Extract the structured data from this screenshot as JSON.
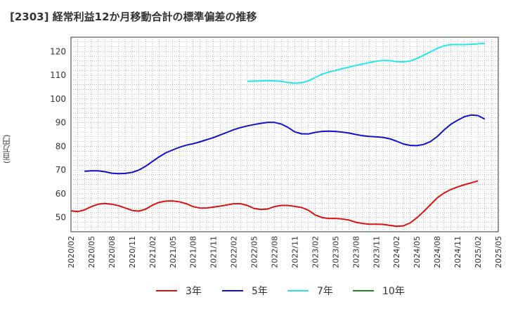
{
  "title": "[2303]  経常利益12か月移動合計の標準偏差の推移",
  "ylabel": "(百万円)",
  "chart_data": {
    "type": "line",
    "ylim": [
      44,
      126
    ],
    "yticks": [
      50,
      60,
      70,
      80,
      90,
      100,
      110,
      120
    ],
    "x_range": [
      "2020-02",
      "2025-05"
    ],
    "xticks": [
      "2020/02",
      "2020/05",
      "2020/08",
      "2020/11",
      "2021/02",
      "2021/05",
      "2021/08",
      "2021/11",
      "2022/02",
      "2022/05",
      "2022/08",
      "2022/11",
      "2023/02",
      "2023/05",
      "2023/08",
      "2023/11",
      "2024/02",
      "2024/05",
      "2024/08",
      "2024/11",
      "2025/02",
      "2025/05"
    ],
    "grid": true,
    "legend_position": "bottom",
    "series": [
      {
        "name": "3年",
        "color": "#dd1111",
        "points": [
          [
            "2020-02",
            52.8
          ],
          [
            "2020-03",
            52.5
          ],
          [
            "2020-04",
            53.2
          ],
          [
            "2020-05",
            54.6
          ],
          [
            "2020-06",
            55.6
          ],
          [
            "2020-07",
            55.9
          ],
          [
            "2020-08",
            55.6
          ],
          [
            "2020-09",
            55.0
          ],
          [
            "2020-10",
            54.0
          ],
          [
            "2020-11",
            53.0
          ],
          [
            "2020-12",
            52.7
          ],
          [
            "2021-01",
            53.5
          ],
          [
            "2021-02",
            55.2
          ],
          [
            "2021-03",
            56.4
          ],
          [
            "2021-04",
            56.9
          ],
          [
            "2021-05",
            57.0
          ],
          [
            "2021-06",
            56.6
          ],
          [
            "2021-07",
            55.8
          ],
          [
            "2021-08",
            54.6
          ],
          [
            "2021-09",
            54.0
          ],
          [
            "2021-10",
            54.0
          ],
          [
            "2021-11",
            54.4
          ],
          [
            "2021-12",
            54.8
          ],
          [
            "2022-01",
            55.3
          ],
          [
            "2022-02",
            55.8
          ],
          [
            "2022-03",
            55.8
          ],
          [
            "2022-04",
            55.1
          ],
          [
            "2022-05",
            53.8
          ],
          [
            "2022-06",
            53.4
          ],
          [
            "2022-07",
            53.6
          ],
          [
            "2022-08",
            54.6
          ],
          [
            "2022-09",
            55.1
          ],
          [
            "2022-10",
            55.1
          ],
          [
            "2022-11",
            54.7
          ],
          [
            "2022-12",
            54.2
          ],
          [
            "2023-01",
            53.1
          ],
          [
            "2023-02",
            51.1
          ],
          [
            "2023-03",
            50.0
          ],
          [
            "2023-04",
            49.6
          ],
          [
            "2023-05",
            49.6
          ],
          [
            "2023-06",
            49.4
          ],
          [
            "2023-07",
            48.9
          ],
          [
            "2023-08",
            48.0
          ],
          [
            "2023-09",
            47.5
          ],
          [
            "2023-10",
            47.2
          ],
          [
            "2023-11",
            47.2
          ],
          [
            "2023-12",
            47.1
          ],
          [
            "2024-01",
            46.7
          ],
          [
            "2024-02",
            46.3
          ],
          [
            "2024-03",
            46.5
          ],
          [
            "2024-04",
            47.7
          ],
          [
            "2024-05",
            49.9
          ],
          [
            "2024-06",
            52.5
          ],
          [
            "2024-07",
            55.4
          ],
          [
            "2024-08",
            58.3
          ],
          [
            "2024-09",
            60.3
          ],
          [
            "2024-10",
            61.8
          ],
          [
            "2024-11",
            62.9
          ],
          [
            "2024-12",
            63.8
          ],
          [
            "2025-01",
            64.6
          ],
          [
            "2025-02",
            65.5
          ]
        ]
      },
      {
        "name": "5年",
        "color": "#1111cc",
        "points": [
          [
            "2020-04",
            69.5
          ],
          [
            "2020-05",
            69.7
          ],
          [
            "2020-06",
            69.7
          ],
          [
            "2020-07",
            69.3
          ],
          [
            "2020-08",
            68.7
          ],
          [
            "2020-09",
            68.5
          ],
          [
            "2020-10",
            68.6
          ],
          [
            "2020-11",
            69.0
          ],
          [
            "2020-12",
            70.0
          ],
          [
            "2021-01",
            71.6
          ],
          [
            "2021-02",
            73.6
          ],
          [
            "2021-03",
            75.6
          ],
          [
            "2021-04",
            77.3
          ],
          [
            "2021-05",
            78.5
          ],
          [
            "2021-06",
            79.6
          ],
          [
            "2021-07",
            80.5
          ],
          [
            "2021-08",
            81.1
          ],
          [
            "2021-09",
            81.9
          ],
          [
            "2021-10",
            82.8
          ],
          [
            "2021-11",
            83.7
          ],
          [
            "2021-12",
            84.8
          ],
          [
            "2022-01",
            85.9
          ],
          [
            "2022-02",
            87.0
          ],
          [
            "2022-03",
            87.9
          ],
          [
            "2022-04",
            88.6
          ],
          [
            "2022-05",
            89.2
          ],
          [
            "2022-06",
            89.7
          ],
          [
            "2022-07",
            90.1
          ],
          [
            "2022-08",
            90.1
          ],
          [
            "2022-09",
            89.4
          ],
          [
            "2022-10",
            88.0
          ],
          [
            "2022-11",
            86.1
          ],
          [
            "2022-12",
            85.3
          ],
          [
            "2023-01",
            85.2
          ],
          [
            "2023-02",
            85.9
          ],
          [
            "2023-03",
            86.3
          ],
          [
            "2023-04",
            86.4
          ],
          [
            "2023-05",
            86.3
          ],
          [
            "2023-06",
            86.0
          ],
          [
            "2023-07",
            85.6
          ],
          [
            "2023-08",
            85.0
          ],
          [
            "2023-09",
            84.5
          ],
          [
            "2023-10",
            84.2
          ],
          [
            "2023-11",
            84.0
          ],
          [
            "2023-12",
            83.8
          ],
          [
            "2024-01",
            83.2
          ],
          [
            "2024-02",
            82.2
          ],
          [
            "2024-03",
            81.0
          ],
          [
            "2024-04",
            80.4
          ],
          [
            "2024-05",
            80.3
          ],
          [
            "2024-06",
            80.8
          ],
          [
            "2024-07",
            82.0
          ],
          [
            "2024-08",
            84.1
          ],
          [
            "2024-09",
            86.9
          ],
          [
            "2024-10",
            89.3
          ],
          [
            "2024-11",
            91.0
          ],
          [
            "2024-12",
            92.5
          ],
          [
            "2025-01",
            93.2
          ],
          [
            "2025-02",
            93.0
          ],
          [
            "2025-03",
            91.5
          ]
        ]
      },
      {
        "name": "7年",
        "color": "#22e8e8",
        "points": [
          [
            "2022-04",
            107.4
          ],
          [
            "2022-05",
            107.5
          ],
          [
            "2022-06",
            107.6
          ],
          [
            "2022-07",
            107.7
          ],
          [
            "2022-08",
            107.6
          ],
          [
            "2022-09",
            107.4
          ],
          [
            "2022-10",
            106.9
          ],
          [
            "2022-11",
            106.6
          ],
          [
            "2022-12",
            106.8
          ],
          [
            "2023-01",
            107.6
          ],
          [
            "2023-02",
            109.0
          ],
          [
            "2023-03",
            110.4
          ],
          [
            "2023-04",
            111.3
          ],
          [
            "2023-05",
            112.0
          ],
          [
            "2023-06",
            112.7
          ],
          [
            "2023-07",
            113.4
          ],
          [
            "2023-08",
            114.1
          ],
          [
            "2023-09",
            114.7
          ],
          [
            "2023-10",
            115.3
          ],
          [
            "2023-11",
            115.9
          ],
          [
            "2023-12",
            116.2
          ],
          [
            "2024-01",
            116.1
          ],
          [
            "2024-02",
            115.7
          ],
          [
            "2024-03",
            115.6
          ],
          [
            "2024-04",
            116.0
          ],
          [
            "2024-05",
            117.0
          ],
          [
            "2024-06",
            118.4
          ],
          [
            "2024-07",
            119.8
          ],
          [
            "2024-08",
            121.3
          ],
          [
            "2024-09",
            122.4
          ],
          [
            "2024-10",
            122.9
          ],
          [
            "2024-11",
            122.9
          ],
          [
            "2024-12",
            122.9
          ],
          [
            "2025-01",
            123.0
          ],
          [
            "2025-02",
            123.2
          ],
          [
            "2025-03",
            123.4
          ]
        ]
      },
      {
        "name": "10年",
        "color": "#228822",
        "points": []
      }
    ]
  }
}
